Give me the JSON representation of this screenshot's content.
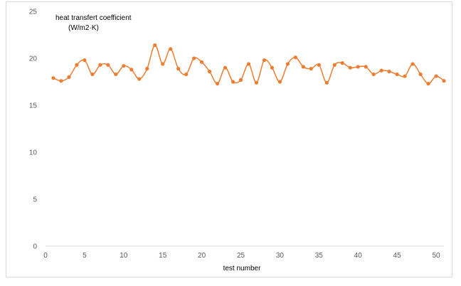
{
  "chart_data": {
    "type": "line",
    "title": "",
    "annotation": [
      "heat transfert coefficient",
      "(W/m2·K)"
    ],
    "xlabel": "test number",
    "ylabel": "",
    "xlim": [
      0,
      51
    ],
    "ylim": [
      0,
      25
    ],
    "xticks": [
      0,
      5,
      10,
      15,
      20,
      25,
      30,
      35,
      40,
      45,
      50
    ],
    "yticks": [
      0,
      5,
      10,
      15,
      20,
      25
    ],
    "grid": false,
    "legend": "none",
    "line_color": "#ED7D31",
    "smoothed": true,
    "series": [
      {
        "x": [
          1,
          2,
          3,
          4,
          5,
          6,
          7,
          8,
          9,
          10,
          11,
          12,
          13,
          14,
          15,
          16,
          17,
          18,
          19,
          20,
          21,
          22,
          23,
          24,
          25,
          26,
          27,
          28,
          29,
          30,
          31,
          32,
          33,
          34,
          35,
          36,
          37,
          38,
          39,
          40,
          41,
          42,
          43,
          44,
          45,
          46,
          47,
          48,
          49,
          50,
          51
        ],
        "values": [
          17.9,
          17.6,
          18.0,
          19.3,
          19.8,
          18.3,
          19.3,
          19.3,
          18.3,
          19.2,
          18.8,
          17.8,
          18.9,
          21.4,
          19.4,
          21.0,
          18.9,
          18.3,
          20.0,
          19.6,
          18.6,
          17.3,
          19.0,
          17.5,
          17.7,
          19.4,
          17.4,
          19.8,
          19.0,
          17.5,
          19.4,
          20.1,
          19.1,
          18.9,
          19.3,
          17.4,
          19.3,
          19.5,
          19.0,
          19.1,
          19.1,
          18.3,
          18.7,
          18.6,
          18.3,
          18.1,
          19.4,
          18.3,
          17.3,
          18.1,
          17.6
        ]
      }
    ]
  }
}
